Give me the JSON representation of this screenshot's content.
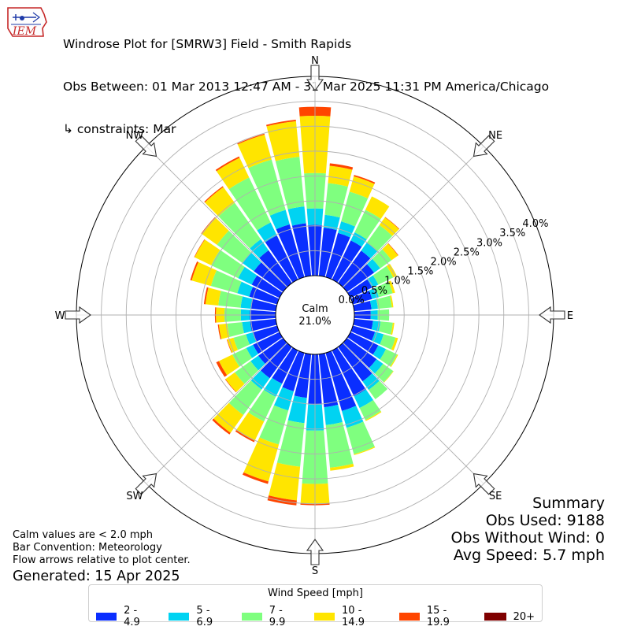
{
  "header": {
    "logo_text": "IEM",
    "title_line1": "Windrose Plot for [SMRW3] Field - Smith Rapids",
    "title_line2": "Obs Between: 01 Mar 2013 12:47 AM - 31 Mar 2025 11:31 PM America/Chicago",
    "title_line3": "↳ constraints: Mar"
  },
  "summary": {
    "title": "Summary",
    "obs_used": "Obs Used: 9188",
    "obs_without_wind": "Obs Without Wind: 0",
    "avg_speed": "Avg Speed: 5.7 mph"
  },
  "notes": {
    "calm_note": "Calm values are < 2.0 mph",
    "bar_convention": "Bar Convention: Meteorology",
    "flow_arrows": "Flow arrows relative to plot center.",
    "generated": "Generated: 15 Apr 2025"
  },
  "chart_data": {
    "type": "windrose",
    "calm_label": "Calm",
    "calm_value": "21.0%",
    "compass_labels": [
      "N",
      "NE",
      "E",
      "SE",
      "S",
      "SW",
      "W",
      "NW"
    ],
    "radial_ticks": [
      0.0,
      0.5,
      1.0,
      1.5,
      2.0,
      2.5,
      3.0,
      3.5,
      4.0
    ],
    "radial_tick_labels": [
      "0.0%",
      "0.5%",
      "1.0%",
      "1.5%",
      "2.0%",
      "2.5%",
      "3.0%",
      "3.5%",
      "4.0%"
    ],
    "rmax": 4.0,
    "legend_title": "Wind Speed [mph]",
    "bins": [
      {
        "label": "2 - 4.9",
        "color": "#0a2eff"
      },
      {
        "label": "5 - 6.9",
        "color": "#00d3f2"
      },
      {
        "label": "7 - 9.9",
        "color": "#7fff7f"
      },
      {
        "label": "10 - 14.9",
        "color": "#ffe500"
      },
      {
        "label": "15 - 19.9",
        "color": "#ff4500"
      },
      {
        "label": "20+",
        "color": "#7f0000"
      }
    ],
    "directions_deg": [
      0,
      10,
      20,
      30,
      40,
      50,
      60,
      70,
      80,
      90,
      100,
      110,
      120,
      130,
      140,
      150,
      160,
      170,
      180,
      190,
      200,
      210,
      220,
      230,
      240,
      250,
      260,
      270,
      280,
      290,
      300,
      310,
      320,
      330,
      340,
      350
    ],
    "cumulative_percent": [
      [
        1.02,
        1.35,
        2.06,
        3.21,
        3.39,
        3.39
      ],
      [
        0.97,
        1.23,
        1.87,
        2.22,
        2.27,
        2.27
      ],
      [
        0.92,
        1.16,
        1.78,
        2.1,
        2.13,
        2.13
      ],
      [
        0.87,
        1.05,
        1.55,
        1.85,
        1.85,
        1.85
      ],
      [
        0.8,
        1.0,
        1.43,
        1.62,
        1.63,
        1.63
      ],
      [
        0.67,
        0.82,
        1.1,
        1.26,
        1.27,
        1.27
      ],
      [
        0.48,
        0.62,
        0.95,
        1.03,
        1.03,
        1.03
      ],
      [
        0.4,
        0.54,
        0.83,
        0.88,
        0.88,
        0.88
      ],
      [
        0.35,
        0.48,
        0.76,
        0.79,
        0.79,
        0.79
      ],
      [
        0.33,
        0.47,
        0.7,
        0.7,
        0.7,
        0.7
      ],
      [
        0.38,
        0.53,
        0.78,
        0.81,
        0.81,
        0.81
      ],
      [
        0.46,
        0.64,
        0.89,
        0.94,
        0.94,
        0.94
      ],
      [
        0.62,
        0.79,
        1.04,
        1.06,
        1.06,
        1.06
      ],
      [
        0.73,
        0.89,
        1.14,
        1.15,
        1.15,
        1.15
      ],
      [
        0.85,
        1.06,
        1.29,
        1.29,
        1.29,
        1.29
      ],
      [
        1.02,
        1.28,
        1.55,
        1.57,
        1.57,
        1.57
      ],
      [
        1.21,
        1.56,
        2.11,
        2.13,
        2.13,
        2.13
      ],
      [
        1.07,
        1.43,
        2.29,
        2.35,
        2.35,
        2.35
      ],
      [
        1.01,
        1.53,
        2.6,
        3.0,
        3.03,
        3.03
      ],
      [
        0.88,
        1.39,
        2.27,
        2.95,
        3.05,
        3.05
      ],
      [
        0.8,
        1.2,
        1.91,
        2.68,
        2.73,
        2.73
      ],
      [
        0.74,
        1.03,
        1.58,
        2.01,
        2.04,
        2.04
      ],
      [
        0.77,
        1.05,
        1.68,
        2.12,
        2.16,
        2.16
      ],
      [
        0.61,
        0.8,
        1.19,
        1.42,
        1.43,
        1.43
      ],
      [
        0.59,
        0.74,
        1.05,
        1.35,
        1.41,
        1.41
      ],
      [
        0.51,
        0.65,
        0.91,
        1.04,
        1.05,
        1.05
      ],
      [
        0.52,
        0.68,
        0.98,
        1.15,
        1.17,
        1.17
      ],
      [
        0.52,
        0.7,
        1.03,
        1.2,
        1.22,
        1.22
      ],
      [
        0.51,
        0.71,
        1.16,
        1.42,
        1.45,
        1.45
      ],
      [
        0.58,
        0.83,
        1.38,
        1.78,
        1.81,
        1.81
      ],
      [
        0.62,
        0.92,
        1.52,
        1.89,
        1.9,
        1.9
      ],
      [
        0.72,
        1.01,
        1.63,
        2.01,
        2.02,
        2.02
      ],
      [
        0.81,
        1.08,
        1.98,
        2.37,
        2.39,
        2.39
      ],
      [
        0.98,
        1.27,
        2.27,
        2.71,
        2.74,
        2.74
      ],
      [
        1.1,
        1.4,
        2.45,
        2.97,
        2.99,
        2.99
      ],
      [
        1.06,
        1.4,
        2.4,
        3.12,
        3.15,
        3.15
      ]
    ]
  }
}
